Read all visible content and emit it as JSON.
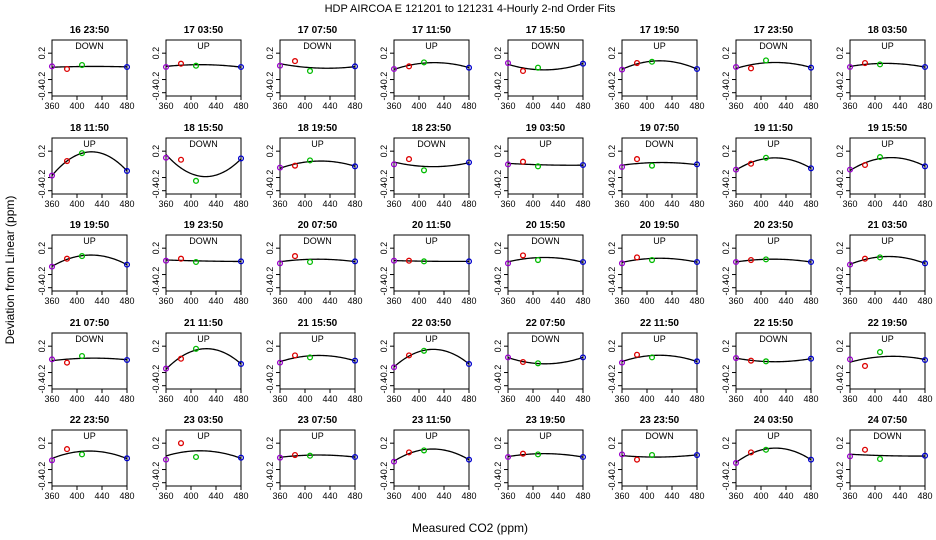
{
  "figure": {
    "title": "HDP   AIRCOA E   121201 to 121231   4-Hourly 2-nd Order Fits",
    "xlabel": "Measured CO2 (ppm)",
    "ylabel": "Deviation from Linear (ppm)"
  },
  "colors": {
    "curve": "#000000",
    "low_std": "#9900cc",
    "mid_std_a": "#dd0000",
    "mid_std_b": "#00bb00",
    "high_std": "#0000cc"
  },
  "chart_data": {
    "type": "scatter",
    "panel_count": 40,
    "layout_rows": 5,
    "layout_cols": 8,
    "xlim": [
      360,
      480
    ],
    "ylim": [
      -0.45,
      0.4
    ],
    "xticks": [
      "360",
      "400",
      "440",
      "480"
    ],
    "yticks": [
      "-0.4",
      "-0.2",
      "0.2"
    ],
    "x_std": [
      360,
      384,
      408,
      480
    ],
    "panels": [
      {
        "time": "16 23:50",
        "dir": "DOWN",
        "pts": [
          0.0,
          -0.04,
          0.02,
          -0.01
        ]
      },
      {
        "time": "17 03:50",
        "dir": "UP",
        "pts": [
          -0.01,
          0.04,
          0.01,
          -0.01
        ]
      },
      {
        "time": "17 07:50",
        "dir": "DOWN",
        "pts": [
          0.01,
          0.08,
          -0.07,
          0.0
        ]
      },
      {
        "time": "17 11:50",
        "dir": "UP",
        "pts": [
          -0.04,
          0.0,
          0.06,
          -0.02
        ]
      },
      {
        "time": "17 15:50",
        "dir": "DOWN",
        "pts": [
          0.05,
          -0.07,
          -0.02,
          0.04
        ]
      },
      {
        "time": "17 19:50",
        "dir": "UP",
        "pts": [
          -0.05,
          0.05,
          0.07,
          -0.04
        ]
      },
      {
        "time": "17 23:50",
        "dir": "DOWN",
        "pts": [
          -0.01,
          -0.03,
          0.09,
          -0.02
        ]
      },
      {
        "time": "18 03:50",
        "dir": "UP",
        "pts": [
          -0.01,
          0.05,
          0.03,
          -0.01
        ]
      },
      {
        "time": "18 11:50",
        "dir": "UP",
        "pts": [
          -0.17,
          0.05,
          0.17,
          -0.1
        ]
      },
      {
        "time": "18 15:50",
        "dir": "DOWN",
        "pts": [
          0.1,
          0.07,
          -0.25,
          0.09
        ]
      },
      {
        "time": "18 19:50",
        "dir": "UP",
        "pts": [
          -0.05,
          -0.02,
          0.06,
          -0.03
        ]
      },
      {
        "time": "18 23:50",
        "dir": "DOWN",
        "pts": [
          0.0,
          0.08,
          -0.09,
          0.03
        ]
      },
      {
        "time": "19 03:50",
        "dir": "UP",
        "pts": [
          0.0,
          0.04,
          -0.03,
          -0.01
        ]
      },
      {
        "time": "19 07:50",
        "dir": "DOWN",
        "pts": [
          -0.04,
          0.08,
          -0.02,
          0.0
        ]
      },
      {
        "time": "19 11:50",
        "dir": "UP",
        "pts": [
          -0.08,
          0.01,
          0.1,
          -0.06
        ]
      },
      {
        "time": "19 15:50",
        "dir": "UP",
        "pts": [
          -0.08,
          -0.01,
          0.11,
          -0.03
        ]
      },
      {
        "time": "19 19:50",
        "dir": "UP",
        "pts": [
          -0.08,
          0.04,
          0.08,
          -0.05
        ]
      },
      {
        "time": "19 23:50",
        "dir": "DOWN",
        "pts": [
          0.01,
          0.04,
          -0.01,
          0.0
        ]
      },
      {
        "time": "20 07:50",
        "dir": "DOWN",
        "pts": [
          -0.03,
          0.08,
          -0.01,
          0.0
        ]
      },
      {
        "time": "20 11:50",
        "dir": "UP",
        "pts": [
          0.01,
          0.01,
          0.0,
          0.0
        ]
      },
      {
        "time": "20 15:50",
        "dir": "DOWN",
        "pts": [
          -0.03,
          0.09,
          0.02,
          -0.01
        ]
      },
      {
        "time": "20 19:50",
        "dir": "UP",
        "pts": [
          -0.03,
          0.06,
          0.02,
          -0.01
        ]
      },
      {
        "time": "20 23:50",
        "dir": "UP",
        "pts": [
          -0.01,
          0.02,
          0.03,
          -0.01
        ]
      },
      {
        "time": "21 03:50",
        "dir": "UP",
        "pts": [
          -0.05,
          0.04,
          0.06,
          -0.03
        ]
      },
      {
        "time": "21 07:50",
        "dir": "DOWN",
        "pts": [
          0.0,
          -0.05,
          0.05,
          -0.01
        ]
      },
      {
        "time": "21 11:50",
        "dir": "UP",
        "pts": [
          -0.14,
          0.01,
          0.16,
          -0.07
        ]
      },
      {
        "time": "21 15:50",
        "dir": "UP",
        "pts": [
          -0.05,
          0.06,
          0.03,
          -0.02
        ]
      },
      {
        "time": "22 03:50",
        "dir": "UP",
        "pts": [
          -0.12,
          0.06,
          0.13,
          -0.07
        ]
      },
      {
        "time": "22 07:50",
        "dir": "DOWN",
        "pts": [
          0.03,
          -0.04,
          -0.06,
          0.03
        ]
      },
      {
        "time": "22 11:50",
        "dir": "UP",
        "pts": [
          -0.05,
          0.07,
          0.03,
          -0.03
        ]
      },
      {
        "time": "22 15:50",
        "dir": "DOWN",
        "pts": [
          0.02,
          -0.02,
          -0.03,
          0.01
        ]
      },
      {
        "time": "22 19:50",
        "dir": "UP",
        "pts": [
          0.0,
          -0.1,
          0.11,
          -0.01
        ]
      },
      {
        "time": "22 23:50",
        "dir": "UP",
        "pts": [
          -0.06,
          0.11,
          0.03,
          -0.03
        ]
      },
      {
        "time": "23 03:50",
        "dir": "UP",
        "pts": [
          -0.05,
          0.2,
          -0.01,
          -0.02
        ]
      },
      {
        "time": "23 07:50",
        "dir": "UP",
        "pts": [
          -0.02,
          0.02,
          0.01,
          -0.01
        ]
      },
      {
        "time": "23 11:50",
        "dir": "UP",
        "pts": [
          -0.08,
          0.06,
          0.09,
          -0.05
        ]
      },
      {
        "time": "23 19:50",
        "dir": "UP",
        "pts": [
          -0.01,
          0.04,
          0.03,
          -0.01
        ]
      },
      {
        "time": "23 23:50",
        "dir": "DOWN",
        "pts": [
          0.03,
          -0.05,
          0.02,
          0.02
        ]
      },
      {
        "time": "24 03:50",
        "dir": "UP",
        "pts": [
          -0.1,
          0.06,
          0.1,
          -0.05
        ]
      },
      {
        "time": "24 07:50",
        "dir": "DOWN",
        "pts": [
          0.0,
          0.1,
          -0.04,
          0.01
        ]
      }
    ]
  }
}
